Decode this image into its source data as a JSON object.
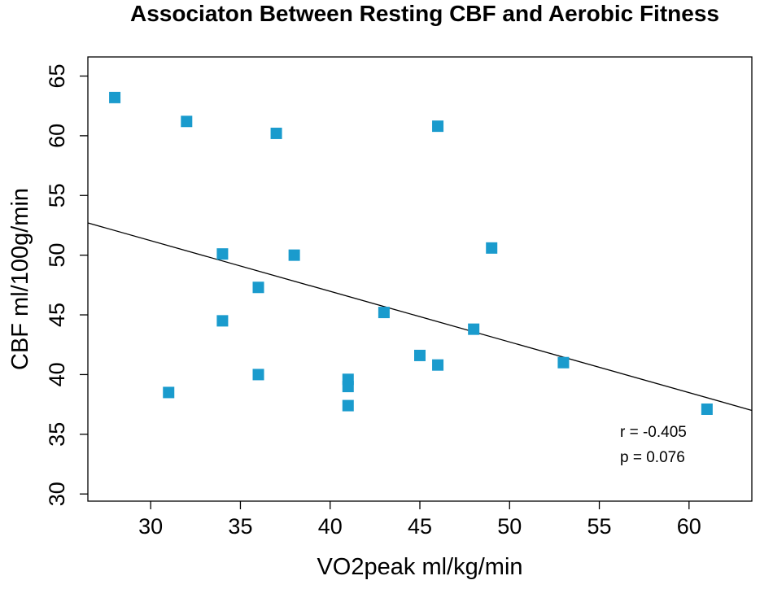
{
  "chart_data": {
    "type": "scatter",
    "title": "Associaton Between Resting CBF and Aerobic Fitness",
    "xlabel": "VO2peak ml/kg/min",
    "ylabel": "CBF ml/100g/min",
    "xlim": [
      26.5,
      63.5
    ],
    "ylim": [
      29.4,
      66.6
    ],
    "xticks": [
      30,
      35,
      40,
      45,
      50,
      55,
      60
    ],
    "yticks": [
      30,
      35,
      40,
      45,
      50,
      55,
      60,
      65
    ],
    "grid": false,
    "series": [
      {
        "name": "subjects",
        "marker": "square",
        "color": "#1a9bcd",
        "points": [
          {
            "x": 28,
            "y": 63.2
          },
          {
            "x": 32,
            "y": 61.2
          },
          {
            "x": 37,
            "y": 60.2
          },
          {
            "x": 46,
            "y": 60.8
          },
          {
            "x": 34,
            "y": 50.1
          },
          {
            "x": 38,
            "y": 50.0
          },
          {
            "x": 49,
            "y": 50.6
          },
          {
            "x": 36,
            "y": 47.3
          },
          {
            "x": 43,
            "y": 45.2
          },
          {
            "x": 34,
            "y": 44.5
          },
          {
            "x": 48,
            "y": 43.8
          },
          {
            "x": 45,
            "y": 41.6
          },
          {
            "x": 46,
            "y": 40.8
          },
          {
            "x": 53,
            "y": 41.0
          },
          {
            "x": 36,
            "y": 40.0
          },
          {
            "x": 41,
            "y": 39.6
          },
          {
            "x": 41,
            "y": 39.0
          },
          {
            "x": 31,
            "y": 38.5
          },
          {
            "x": 41,
            "y": 37.4
          },
          {
            "x": 61,
            "y": 37.1
          }
        ]
      }
    ],
    "regression_line": {
      "color": "#000000",
      "from": {
        "x": 26.5,
        "y": 52.7
      },
      "to": {
        "x": 63.5,
        "y": 37.0
      }
    },
    "annotations": {
      "r_text": "r = -0.405",
      "p_text": "p = 0.076"
    }
  }
}
